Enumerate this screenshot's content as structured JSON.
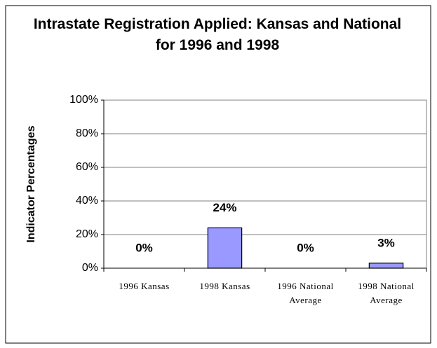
{
  "chart_data": {
    "type": "bar",
    "title": "Intrastate Registration Applied: Kansas and National for 1996 and 1998",
    "y_label": "Indicator Percentages",
    "categories": [
      "1996 Kansas",
      "1998 Kansas",
      "1996 National Average",
      "1998 National Average"
    ],
    "values": [
      0,
      24,
      0,
      3
    ],
    "value_labels": [
      "0%",
      "24%",
      "0%",
      "3%"
    ],
    "color": "#9999ff",
    "ylim": [
      0,
      100
    ],
    "yticks": [
      {
        "value": 0,
        "label": "0%"
      },
      {
        "value": 20,
        "label": "20%"
      },
      {
        "value": 40,
        "label": "40%"
      },
      {
        "value": 60,
        "label": "60%"
      },
      {
        "value": 80,
        "label": "80%"
      },
      {
        "value": 100,
        "label": "100%"
      }
    ],
    "grid": true
  }
}
